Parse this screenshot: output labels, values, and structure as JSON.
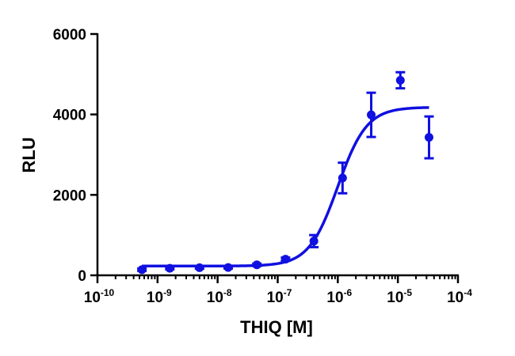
{
  "chart_data": {
    "type": "scatter",
    "xlabel": "THIQ [M]",
    "ylabel": "RLU",
    "xscale": "log",
    "xlim": [
      1e-10,
      0.0001
    ],
    "ylim": [
      0,
      6000
    ],
    "x_tick_labels": [
      {
        "base": "10",
        "exp": "-10"
      },
      {
        "base": "10",
        "exp": "-9"
      },
      {
        "base": "10",
        "exp": "-8"
      },
      {
        "base": "10",
        "exp": "-7"
      },
      {
        "base": "10",
        "exp": "-6"
      },
      {
        "base": "10",
        "exp": "-5"
      },
      {
        "base": "10",
        "exp": "-4"
      }
    ],
    "y_ticks": [
      0,
      2000,
      4000,
      6000
    ],
    "y_tick_labels": [
      "0",
      "2000",
      "4000",
      "6000"
    ],
    "grid": false,
    "color": "#1010e0",
    "series": [
      {
        "points": [
          {
            "x": 5.5e-10,
            "y": 140,
            "err": 30
          },
          {
            "x": 1.6e-09,
            "y": 175,
            "err": 25
          },
          {
            "x": 5e-09,
            "y": 190,
            "err": 25
          },
          {
            "x": 1.5e-08,
            "y": 195,
            "err": 25
          },
          {
            "x": 4.5e-08,
            "y": 260,
            "err": 30
          },
          {
            "x": 1.35e-07,
            "y": 400,
            "err": 40
          },
          {
            "x": 4e-07,
            "y": 850,
            "err": 150
          },
          {
            "x": 1.2e-06,
            "y": 2420,
            "err": 380
          },
          {
            "x": 3.6e-06,
            "y": 3990,
            "err": 550
          },
          {
            "x": 1.1e-05,
            "y": 4850,
            "err": 200
          },
          {
            "x": 3.3e-05,
            "y": 3430,
            "err": 520
          }
        ],
        "fit": {
          "model": "four-parameter logistic",
          "bottom": 230,
          "top": 4180,
          "ec50": 1e-06,
          "hill": 1.8,
          "x_range": [
            5.5e-10,
            3.3e-05
          ]
        }
      }
    ]
  }
}
